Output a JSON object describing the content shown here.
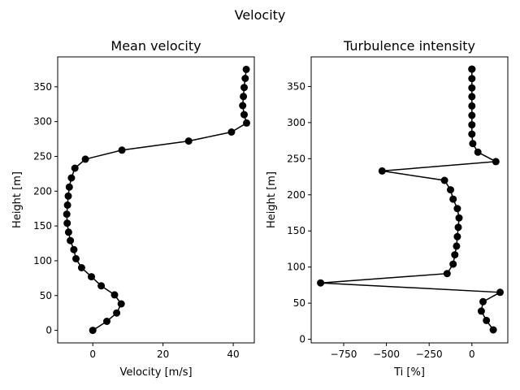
{
  "figure": {
    "suptitle": "Velocity"
  },
  "chart_data": [
    {
      "type": "line",
      "title": "Mean velocity",
      "xlabel": "Velocity [m/s]",
      "ylabel": "Height [m]",
      "xlim": [
        -10,
        46
      ],
      "ylim": [
        -18,
        393
      ],
      "xticks": [
        0,
        20,
        40
      ],
      "xtick_labels": [
        "0",
        "20",
        "40"
      ],
      "yticks": [
        0,
        50,
        100,
        150,
        200,
        250,
        300,
        350
      ],
      "ytick_labels": [
        "0",
        "50",
        "100",
        "150",
        "200",
        "250",
        "300",
        "350"
      ],
      "grid": false,
      "marker": "circle",
      "color": "#000000",
      "series": [
        {
          "x": [
            0,
            4,
            6.8,
            8.1,
            6.2,
            2.4,
            -0.4,
            -3.2,
            -4.8,
            -5.4,
            -6.4,
            -6.9,
            -7.3,
            -7.4,
            -7.2,
            -7.0,
            -6.7,
            -6.1,
            -5.1,
            -2.1,
            8.3,
            27.3,
            39.5,
            43.8,
            43.1,
            42.7,
            42.9,
            43.1,
            43.4,
            43.7
          ],
          "y": [
            0,
            13,
            25,
            38,
            51,
            64,
            77,
            90,
            103,
            116,
            129,
            141,
            154,
            167,
            180,
            193,
            206,
            219,
            233,
            246,
            259,
            272,
            285,
            298,
            310,
            323,
            336,
            349,
            362,
            375
          ]
        }
      ]
    },
    {
      "type": "line",
      "title": "Turbulence intensity",
      "xlabel": "Ti [%]",
      "ylabel": "Height [m]",
      "xlim": [
        -940,
        210
      ],
      "ylim": [
        -5,
        391
      ],
      "xticks": [
        -750,
        -500,
        -250,
        0
      ],
      "xtick_labels": [
        "−750",
        "−500",
        "−250",
        "0"
      ],
      "yticks": [
        0,
        50,
        100,
        150,
        200,
        250,
        300,
        350
      ],
      "ytick_labels": [
        "0",
        "50",
        "100",
        "150",
        "200",
        "250",
        "300",
        "350"
      ],
      "grid": false,
      "marker": "circle",
      "color": "#000000",
      "series": [
        {
          "x": [
            125,
            85,
            55,
            65,
            165,
            -885,
            -145,
            -110,
            -100,
            -90,
            -85,
            -80,
            -75,
            -85,
            -110,
            -125,
            -160,
            -525,
            140,
            35,
            5,
            0,
            0,
            0,
            0,
            0,
            0,
            0,
            0,
            0
          ],
          "y": [
            13,
            26,
            39,
            52,
            65,
            78,
            91,
            104,
            117,
            129,
            142,
            155,
            168,
            181,
            194,
            207,
            220,
            233,
            246,
            259,
            271,
            284,
            297,
            310,
            323,
            336,
            348,
            361,
            374,
            374
          ]
        }
      ]
    }
  ]
}
